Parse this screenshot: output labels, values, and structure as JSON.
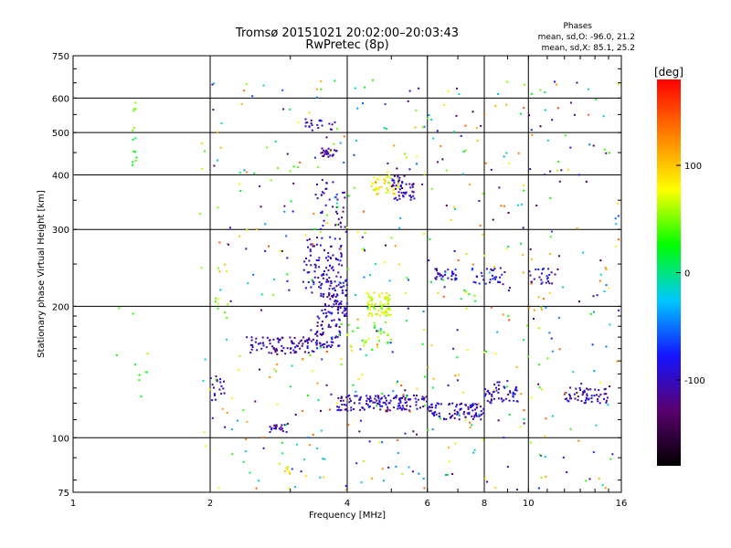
{
  "chart_data": {
    "type": "scatter",
    "title": "Tromsø 20151021 20:02:00–20:03:43",
    "subtitle": "RwPretec (8p)",
    "phases": {
      "title": "Phases",
      "line_o": "mean, sd,O: -96.0, 21.2",
      "line_x": "mean, sd,X: 85.1, 25.2"
    },
    "xlabel": "Frequency [MHz]",
    "ylabel": "Stationary phase Virtual Height [km]",
    "x_scale": "log",
    "y_scale": "log",
    "xlim": [
      1,
      16
    ],
    "ylim": [
      75,
      750
    ],
    "x_ticks": [
      1,
      2,
      4,
      6,
      8,
      10,
      16
    ],
    "x_tick_labels": [
      "1",
      "2",
      "4",
      "6",
      "8",
      "10",
      "16"
    ],
    "y_ticks": [
      75,
      100,
      200,
      300,
      400,
      500,
      600,
      750
    ],
    "y_tick_labels": [
      "75",
      "100",
      "200",
      "300",
      "400",
      "500",
      "600",
      "750"
    ],
    "grid": true,
    "colorbar": {
      "label": "[deg]",
      "range": [
        -180,
        180
      ],
      "ticks": [
        -100,
        0,
        100
      ],
      "tick_labels": [
        "-100",
        "0",
        "100"
      ],
      "colors": [
        "#000000",
        "#5a006e",
        "#1414ff",
        "#00c8ff",
        "#00ff00",
        "#ffff00",
        "#ff7f00",
        "#ff0000"
      ]
    },
    "clusters": [
      {
        "x": [
          1.35,
          1.38
        ],
        "y": [
          420,
          590
        ],
        "phase": 30,
        "count": 14
      },
      {
        "x": [
          1.2,
          1.5
        ],
        "y": [
          115,
          220
        ],
        "phase": 40,
        "count": 10
      },
      {
        "x": [
          2.0,
          2.15
        ],
        "y": [
          120,
          140
        ],
        "phase": -100,
        "count": 18
      },
      {
        "x": [
          2.05,
          2.2
        ],
        "y": [
          175,
          210
        ],
        "phase": 60,
        "count": 8
      },
      {
        "x": [
          2.4,
          3.4
        ],
        "y": [
          155,
          170
        ],
        "phase": -105,
        "count": 90
      },
      {
        "x": [
          3.4,
          3.9
        ],
        "y": [
          160,
          190
        ],
        "phase": -100,
        "count": 60
      },
      {
        "x": [
          3.2,
          3.9
        ],
        "y": [
          220,
          290
        ],
        "phase": -100,
        "count": 90
      },
      {
        "x": [
          3.5,
          4.0
        ],
        "y": [
          190,
          230
        ],
        "phase": -95,
        "count": 80
      },
      {
        "x": [
          3.4,
          4.0
        ],
        "y": [
          300,
          390
        ],
        "phase": -100,
        "count": 40
      },
      {
        "x": [
          3.5,
          3.8
        ],
        "y": [
          440,
          460
        ],
        "phase": -110,
        "count": 25
      },
      {
        "x": [
          3.2,
          3.8
        ],
        "y": [
          505,
          535
        ],
        "phase": -100,
        "count": 20
      },
      {
        "x": [
          4.4,
          5.0
        ],
        "y": [
          190,
          215
        ],
        "phase": 70,
        "count": 70
      },
      {
        "x": [
          4.5,
          5.2
        ],
        "y": [
          360,
          400
        ],
        "phase": 80,
        "count": 45
      },
      {
        "x": [
          5.0,
          5.6
        ],
        "y": [
          350,
          400
        ],
        "phase": -100,
        "count": 50
      },
      {
        "x": [
          3.8,
          6.0
        ],
        "y": [
          115,
          125
        ],
        "phase": -100,
        "count": 140
      },
      {
        "x": [
          6.0,
          8.0
        ],
        "y": [
          110,
          120
        ],
        "phase": -100,
        "count": 90
      },
      {
        "x": [
          6.2,
          7.0
        ],
        "y": [
          230,
          245
        ],
        "phase": -95,
        "count": 30
      },
      {
        "x": [
          7.5,
          9.0
        ],
        "y": [
          225,
          245
        ],
        "phase": -90,
        "count": 30
      },
      {
        "x": [
          8.0,
          9.5
        ],
        "y": [
          120,
          135
        ],
        "phase": -95,
        "count": 50
      },
      {
        "x": [
          10.0,
          11.5
        ],
        "y": [
          225,
          245
        ],
        "phase": -90,
        "count": 25
      },
      {
        "x": [
          12.0,
          15.0
        ],
        "y": [
          120,
          130
        ],
        "phase": -100,
        "count": 55
      },
      {
        "x": [
          3.8,
          5.0
        ],
        "y": [
          160,
          185
        ],
        "phase": 50,
        "count": 30
      },
      {
        "x": [
          2.7,
          3.0
        ],
        "y": [
          103,
          108
        ],
        "phase": -100,
        "count": 20
      },
      {
        "x": [
          2.9,
          3.0
        ],
        "y": [
          82,
          86
        ],
        "phase": 80,
        "count": 8
      },
      {
        "x": [
          1.9,
          16.0
        ],
        "y": [
          75,
          660
        ],
        "phase": 0,
        "count": 600,
        "scatter": true
      }
    ]
  }
}
